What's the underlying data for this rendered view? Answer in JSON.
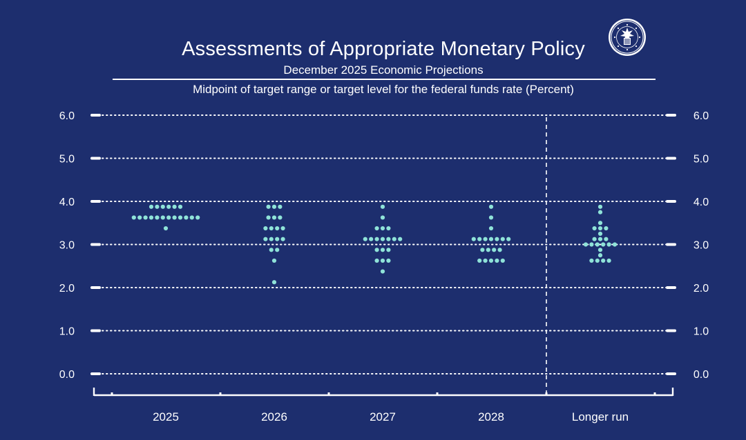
{
  "header": {
    "title": "Assessments of Appropriate Monetary Policy",
    "subtitle": "December 2025 Economic Projections",
    "caption": "Midpoint of target range or target level for the federal funds rate (Percent)"
  },
  "colors": {
    "background": "#1d2e6e",
    "dots": "#8fe3d8",
    "text": "#ffffff"
  },
  "seal": {
    "icon": "federal-reserve-seal"
  },
  "chart_data": {
    "type": "scatter",
    "title": "Assessments of Appropriate Monetary Policy",
    "subtitle": "December 2025 Economic Projections",
    "ylabel": "Midpoint of target range or target level for the federal funds rate (Percent)",
    "xlabel": "",
    "categories": [
      "2025",
      "2026",
      "2027",
      "2028",
      "Longer run"
    ],
    "ylim": [
      0,
      6
    ],
    "yticks": [
      "0.0",
      "1.0",
      "2.0",
      "3.0",
      "4.0",
      "5.0",
      "6.0"
    ],
    "ytick_values": [
      0,
      1,
      2,
      3,
      4,
      5,
      6
    ],
    "y_axis_both_sides": true,
    "grid": "dotted horizontal",
    "separator_before": "Longer run",
    "dots": [
      {
        "category": "2025",
        "counts": [
          {
            "y": 3.875,
            "count": 6
          },
          {
            "y": 3.625,
            "count": 12
          },
          {
            "y": 3.375,
            "count": 1
          }
        ]
      },
      {
        "category": "2026",
        "counts": [
          {
            "y": 3.875,
            "count": 3
          },
          {
            "y": 3.625,
            "count": 3
          },
          {
            "y": 3.375,
            "count": 4
          },
          {
            "y": 3.125,
            "count": 4
          },
          {
            "y": 2.875,
            "count": 2
          },
          {
            "y": 2.625,
            "count": 1
          },
          {
            "y": 2.125,
            "count": 1
          }
        ]
      },
      {
        "category": "2027",
        "counts": [
          {
            "y": 3.875,
            "count": 1
          },
          {
            "y": 3.625,
            "count": 1
          },
          {
            "y": 3.375,
            "count": 3
          },
          {
            "y": 3.125,
            "count": 7
          },
          {
            "y": 2.875,
            "count": 3
          },
          {
            "y": 2.625,
            "count": 3
          },
          {
            "y": 2.375,
            "count": 1
          }
        ]
      },
      {
        "category": "2028",
        "counts": [
          {
            "y": 3.875,
            "count": 1
          },
          {
            "y": 3.625,
            "count": 1
          },
          {
            "y": 3.375,
            "count": 1
          },
          {
            "y": 3.125,
            "count": 7
          },
          {
            "y": 2.875,
            "count": 4
          },
          {
            "y": 2.625,
            "count": 5
          }
        ]
      },
      {
        "category": "Longer run",
        "counts": [
          {
            "y": 3.875,
            "count": 1
          },
          {
            "y": 3.75,
            "count": 1
          },
          {
            "y": 3.5,
            "count": 1
          },
          {
            "y": 3.375,
            "count": 3
          },
          {
            "y": 3.25,
            "count": 1
          },
          {
            "y": 3.125,
            "count": 3
          },
          {
            "y": 3.0,
            "count": 6
          },
          {
            "y": 2.875,
            "count": 1
          },
          {
            "y": 2.75,
            "count": 1
          },
          {
            "y": 2.625,
            "count": 4
          }
        ]
      }
    ]
  }
}
